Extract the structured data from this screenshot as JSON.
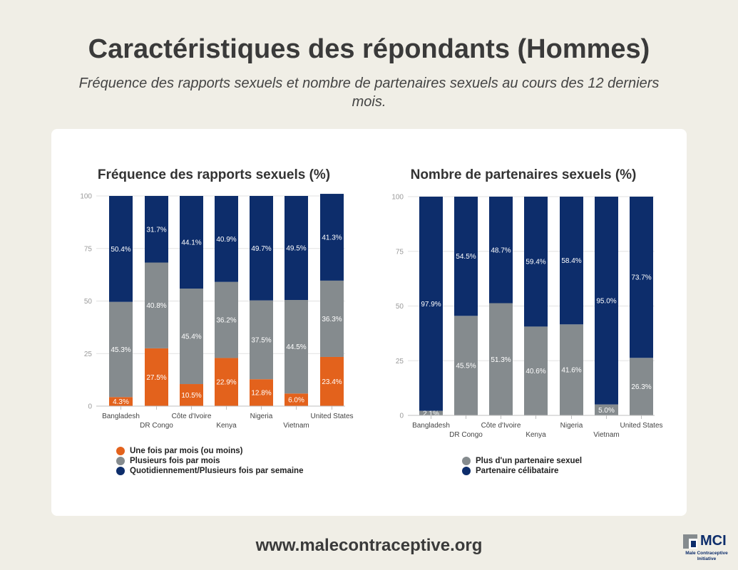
{
  "page": {
    "title": "Caractéristiques des répondants (Hommes)",
    "subtitle": "Fréquence des rapports sexuels et nombre de partenaires sexuels au cours des 12 derniers mois.",
    "footer_url": "www.malecontraceptive.org",
    "logo_abbr": "MCI",
    "logo_name": "Male Contraceptive Initiative"
  },
  "colors": {
    "orange": "#e3621c",
    "gray": "#858b8e",
    "navy": "#0d2d6b"
  },
  "chart_data": [
    {
      "type": "bar",
      "stacked": true,
      "title": "Fréquence des rapports sexuels (%)",
      "categories": [
        "Bangladesh",
        "DR Congo",
        "Côte d'Ivoire",
        "Kenya",
        "Nigeria",
        "Vietnam",
        "United States"
      ],
      "ylim": [
        0,
        100
      ],
      "yticks": [
        0,
        25,
        50,
        75,
        100
      ],
      "series": [
        {
          "name": "Une fois par mois (ou moins)",
          "color": "#e3621c",
          "values": [
            4.3,
            27.5,
            10.5,
            22.9,
            12.8,
            6.0,
            23.4
          ],
          "labels": [
            "4.3%",
            "27.5%",
            "10.5%",
            "22.9%",
            "12.8%",
            "6.0%",
            "23.4%"
          ]
        },
        {
          "name": "Plusieurs fois par mois",
          "color": "#858b8e",
          "values": [
            45.3,
            40.8,
            45.4,
            36.2,
            37.5,
            44.5,
            36.3
          ],
          "labels": [
            "45.3%",
            "40.8%",
            "45.4%",
            "36.2%",
            "37.5%",
            "44.5%",
            "36.3%"
          ]
        },
        {
          "name": "Quotidiennement/Plusieurs fois par semaine",
          "color": "#0d2d6b",
          "values": [
            50.4,
            31.7,
            44.1,
            40.9,
            49.7,
            49.5,
            41.3
          ],
          "labels": [
            "50.4%",
            "31.7%",
            "44.1%",
            "40.9%",
            "49.7%",
            "49.5%",
            "41.3%"
          ]
        }
      ]
    },
    {
      "type": "bar",
      "stacked": true,
      "title": "Nombre de partenaires sexuels (%)",
      "categories": [
        "Bangladesh",
        "DR Congo",
        "Côte d'Ivoire",
        "Kenya",
        "Nigeria",
        "Vietnam",
        "United States"
      ],
      "ylim": [
        0,
        100
      ],
      "yticks": [
        0,
        25,
        50,
        75,
        100
      ],
      "series": [
        {
          "name": "Plus d'un partenaire sexuel",
          "color": "#858b8e",
          "values": [
            2.1,
            45.5,
            51.3,
            40.6,
            41.6,
            5.0,
            26.3
          ],
          "labels": [
            "2.1%",
            "45.5%",
            "51.3%",
            "40.6%",
            "41.6%",
            "5.0%",
            "26.3%"
          ]
        },
        {
          "name": "Partenaire célibataire",
          "color": "#0d2d6b",
          "values": [
            97.9,
            54.5,
            48.7,
            59.4,
            58.4,
            95.0,
            73.7
          ],
          "labels": [
            "97.9%",
            "54.5%",
            "48.7%",
            "59.4%",
            "58.4%",
            "95.0%",
            "73.7%"
          ]
        }
      ]
    }
  ]
}
